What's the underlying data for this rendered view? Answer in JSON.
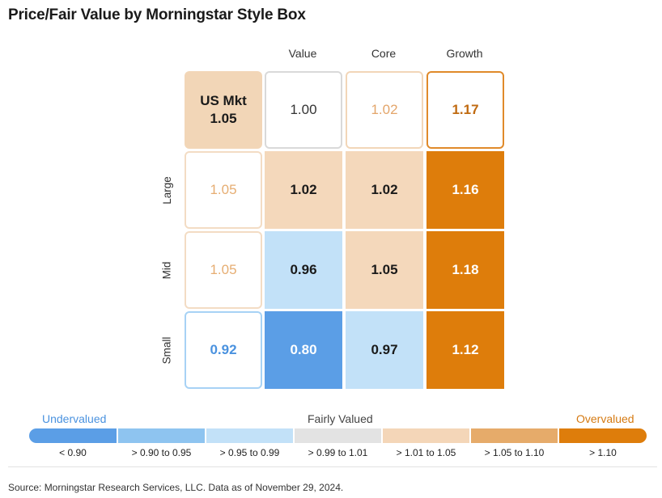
{
  "title": "Price/Fair Value by Morningstar Style Box",
  "chart_data": {
    "type": "heatmap",
    "columns": [
      "Value",
      "Core",
      "Growth"
    ],
    "rows": [
      "Large",
      "Mid",
      "Small"
    ],
    "overall": {
      "label": "US Mkt",
      "value": "1.05"
    },
    "column_totals": [
      "1.00",
      "1.02",
      "1.17"
    ],
    "row_totals": [
      "1.05",
      "1.05",
      "0.92"
    ],
    "values": [
      [
        "1.02",
        "1.02",
        "1.16"
      ],
      [
        "0.96",
        "1.05",
        "1.18"
      ],
      [
        "0.80",
        "0.97",
        "1.12"
      ]
    ]
  },
  "legend": {
    "undervalued": "Undervalued",
    "fairly_valued": "Fairly Valued",
    "overvalued": "Overvalued",
    "segments": [
      {
        "label": "< 0.90",
        "color": "#5b9ee6"
      },
      {
        "label": "> 0.90 to 0.95",
        "color": "#8ec4f0"
      },
      {
        "label": "> 0.95 to 0.99",
        "color": "#c2e1f8"
      },
      {
        "label": "> 0.99 to 1.01",
        "color": "#e3e3e3"
      },
      {
        "label": "> 1.01 to 1.05",
        "color": "#f4d6b8"
      },
      {
        "label": "> 1.05 to 1.10",
        "color": "#e6ab6a"
      },
      {
        "label": "> 1.10",
        "color": "#de7d0b"
      }
    ]
  },
  "source": "Source: Morningstar Research Services, LLC. Data as of November 29, 2024."
}
